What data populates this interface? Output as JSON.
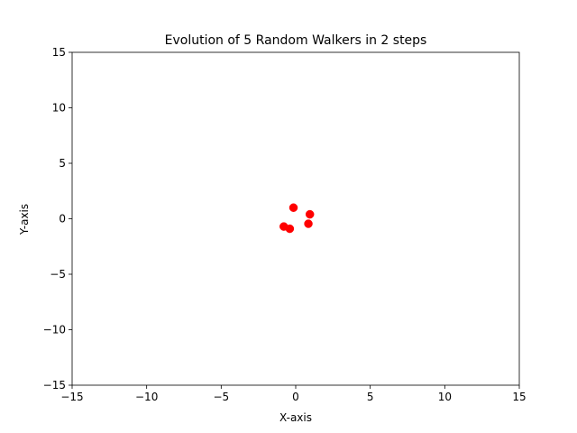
{
  "chart_data": {
    "type": "scatter",
    "title": "Evolution of 5 Random Walkers in 2 steps",
    "xlabel": "X-axis",
    "ylabel": "Y-axis",
    "xlim": [
      -15,
      15
    ],
    "ylim": [
      -15,
      15
    ],
    "xticks": [
      -15,
      -10,
      -5,
      0,
      5,
      10,
      15
    ],
    "yticks": [
      -15,
      -10,
      -5,
      0,
      5,
      10,
      15
    ],
    "xtick_labels": [
      "−15",
      "−10",
      "−5",
      "0",
      "5",
      "10",
      "15"
    ],
    "ytick_labels": [
      "−15",
      "−10",
      "−5",
      "0",
      "5",
      "10",
      "15"
    ],
    "grid": false,
    "point_color": "#ff0000",
    "series": [
      {
        "x": [
          -0.15,
          0.95,
          -0.8,
          -0.4,
          0.85
        ],
        "y": [
          1.0,
          0.4,
          -0.7,
          -0.9,
          -0.45
        ]
      }
    ]
  }
}
